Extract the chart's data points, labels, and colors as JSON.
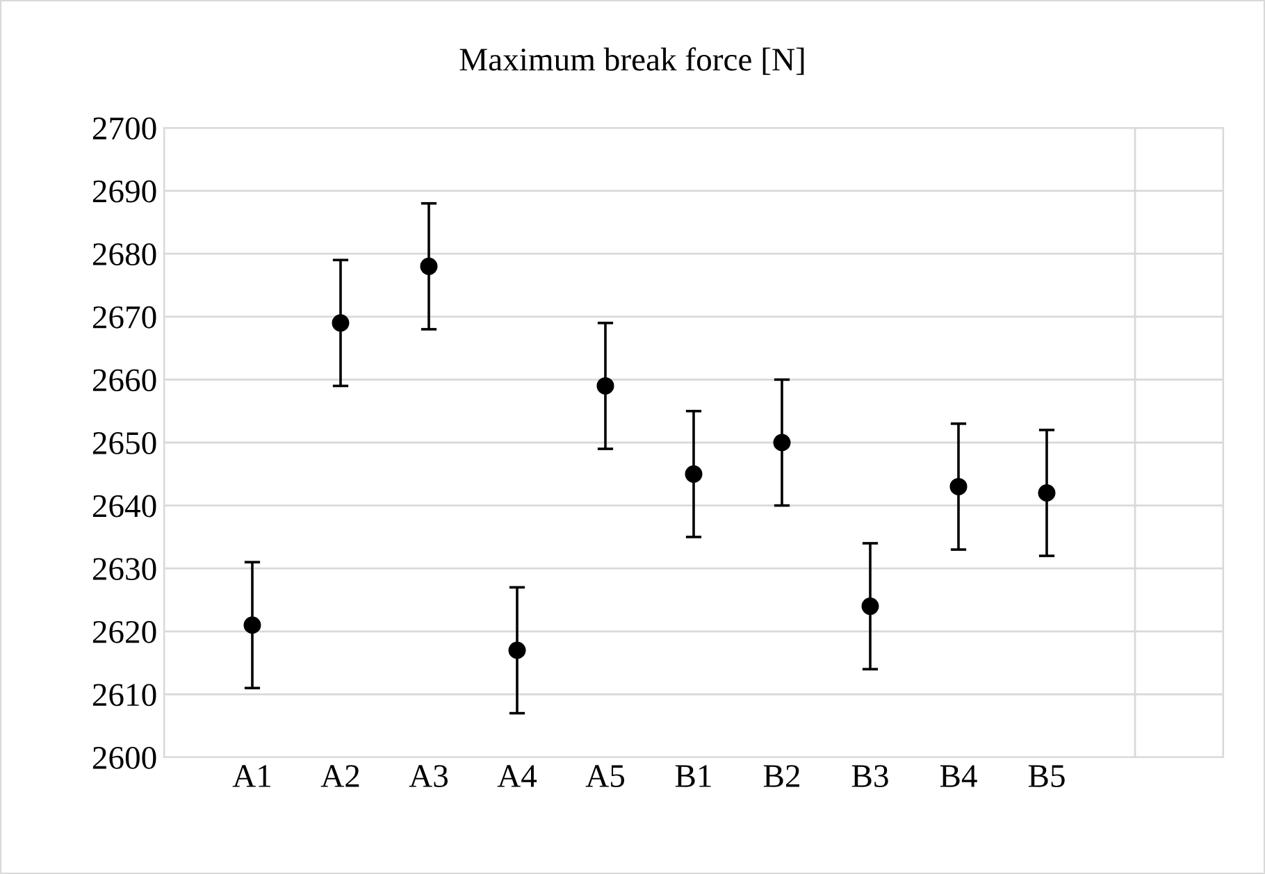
{
  "chart_data": {
    "type": "scatter",
    "title": "Maximum break force [N]",
    "categories": [
      "A1",
      "A2",
      "A3",
      "A4",
      "A5",
      "B1",
      "B2",
      "B3",
      "B4",
      "B5"
    ],
    "values": [
      2621,
      2669,
      2678,
      2617,
      2659,
      2645,
      2650,
      2624,
      2643,
      2642
    ],
    "errors": [
      10,
      10,
      10,
      10,
      10,
      10,
      10,
      10,
      10,
      10
    ],
    "color": "#000000",
    "marker": "circle",
    "ylim": [
      2600,
      2700
    ],
    "yticks": [
      2600,
      2610,
      2620,
      2630,
      2640,
      2650,
      2660,
      2670,
      2680,
      2690,
      2700
    ],
    "grid": true
  }
}
